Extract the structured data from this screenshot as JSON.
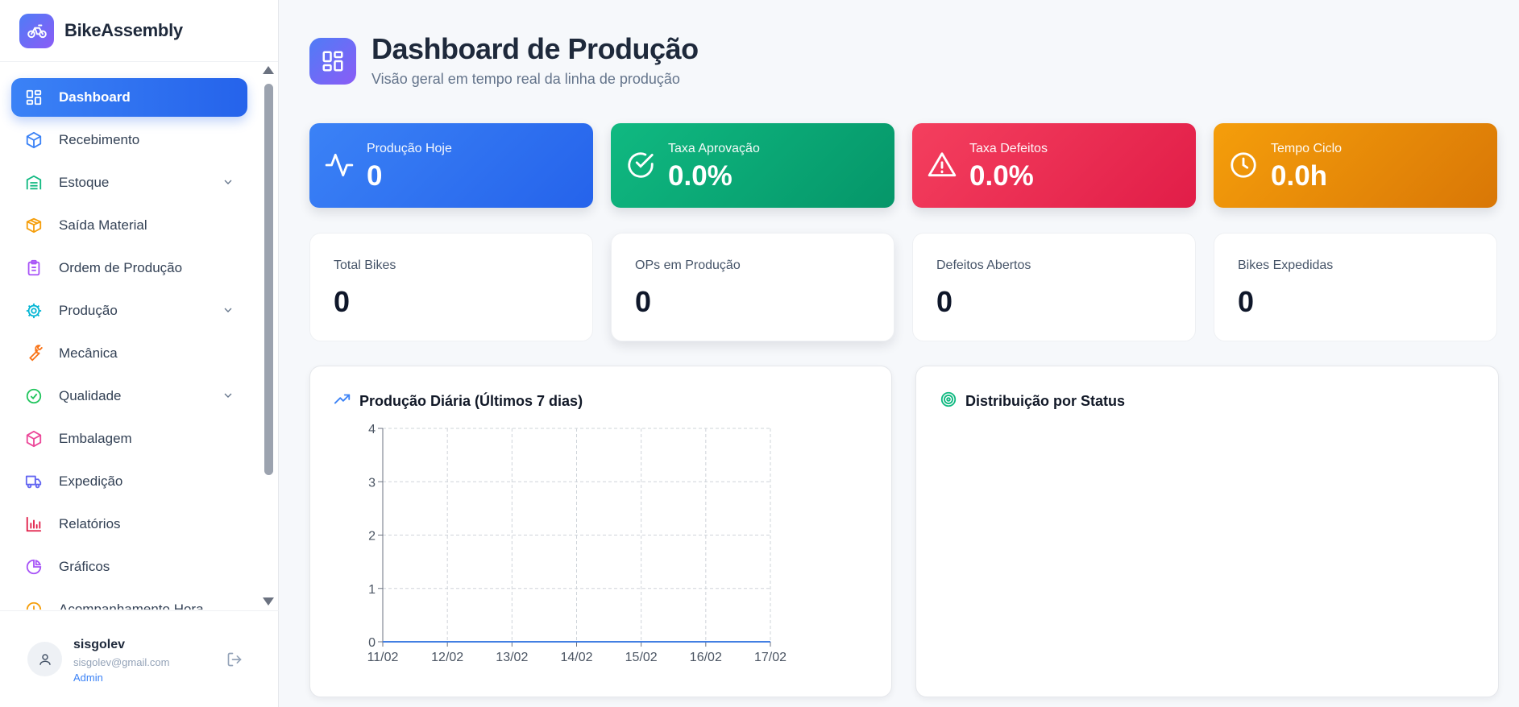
{
  "app": {
    "name": "BikeAssembly"
  },
  "colors": {
    "primary": "#2563eb",
    "accent_purple": "#8b5cf6",
    "green": "#10b981",
    "red": "#e11d48",
    "orange": "#d97706"
  },
  "sidebar": {
    "items": [
      {
        "label": "Dashboard",
        "icon": "layout-dashboard-icon",
        "active": true
      },
      {
        "label": "Recebimento",
        "icon": "package-icon"
      },
      {
        "label": "Estoque",
        "icon": "warehouse-icon",
        "expandable": true
      },
      {
        "label": "Saída Material",
        "icon": "package-open-icon"
      },
      {
        "label": "Ordem de Produção",
        "icon": "clipboard-list-icon"
      },
      {
        "label": "Produção",
        "icon": "cog-icon",
        "expandable": true
      },
      {
        "label": "Mecânica",
        "icon": "wrench-icon"
      },
      {
        "label": "Qualidade",
        "icon": "check-circle-icon",
        "expandable": true
      },
      {
        "label": "Embalagem",
        "icon": "box-icon"
      },
      {
        "label": "Expedição",
        "icon": "truck-icon"
      },
      {
        "label": "Relatórios",
        "icon": "bar-chart-icon"
      },
      {
        "label": "Gráficos",
        "icon": "pie-chart-icon"
      },
      {
        "label": "Acompanhamento Hora",
        "icon": "clock-icon"
      }
    ]
  },
  "user": {
    "name": "sisgolev",
    "email": "sisgolev@gmail.com",
    "role": "Admin"
  },
  "header": {
    "title": "Dashboard de Produção",
    "subtitle": "Visão geral em tempo real da linha de produção"
  },
  "kpis": [
    {
      "label": "Produção Hoje",
      "value": "0",
      "icon": "activity-icon"
    },
    {
      "label": "Taxa Aprovação",
      "value": "0.0%",
      "icon": "check-circle-icon"
    },
    {
      "label": "Taxa Defeitos",
      "value": "0.0%",
      "icon": "alert-triangle-icon"
    },
    {
      "label": "Tempo Ciclo",
      "value": "0.0h",
      "icon": "clock-icon"
    }
  ],
  "stats": [
    {
      "label": "Total Bikes",
      "value": "0"
    },
    {
      "label": "OPs em Produção",
      "value": "0"
    },
    {
      "label": "Defeitos Abertos",
      "value": "0"
    },
    {
      "label": "Bikes Expedidas",
      "value": "0"
    }
  ],
  "panels": {
    "daily": {
      "title": "Produção Diária (Últimos 7 dias)",
      "icon": "trending-up-icon"
    },
    "status": {
      "title": "Distribuição por Status",
      "icon": "target-icon"
    }
  },
  "chart_data": {
    "type": "line",
    "title": "Produção Diária (Últimos 7 dias)",
    "categories": [
      "11/02",
      "12/02",
      "13/02",
      "14/02",
      "15/02",
      "16/02",
      "17/02"
    ],
    "values": [
      0,
      0,
      0,
      0,
      0,
      0,
      0
    ],
    "y_ticks": [
      "0",
      "1",
      "2",
      "3",
      "4"
    ],
    "ylim": [
      0,
      4
    ],
    "grid": true,
    "color": "#3b82f6"
  }
}
